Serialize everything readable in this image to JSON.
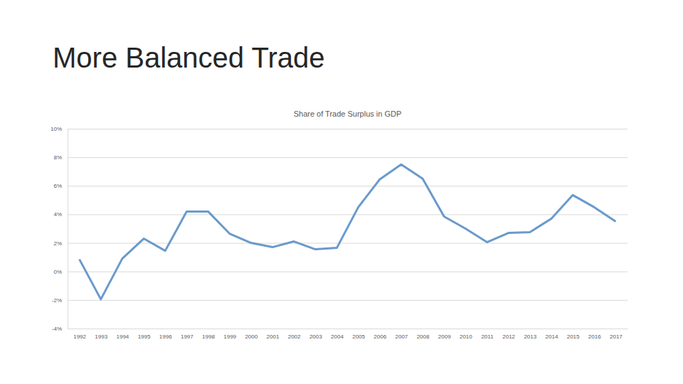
{
  "slide": {
    "title": "More Balanced Trade"
  },
  "chart_data": {
    "type": "line",
    "title": "Share of Trade Surplus in GDP",
    "categories": [
      "1992",
      "1993",
      "1994",
      "1995",
      "1996",
      "1997",
      "1998",
      "1999",
      "2000",
      "2001",
      "2002",
      "2003",
      "2004",
      "2005",
      "2006",
      "2007",
      "2008",
      "2009",
      "2010",
      "2011",
      "2012",
      "2013",
      "2014",
      "2015",
      "2016",
      "2017"
    ],
    "values": [
      0.85,
      -1.95,
      0.9,
      2.3,
      1.45,
      4.2,
      4.2,
      2.65,
      2.0,
      1.7,
      2.1,
      1.55,
      1.65,
      4.5,
      6.45,
      7.5,
      6.5,
      3.85,
      3.0,
      2.05,
      2.7,
      2.75,
      3.7,
      5.35,
      4.5,
      3.5
    ],
    "color": "#6a9acb",
    "ylim": [
      -4,
      10
    ],
    "yticks": [
      {
        "value": -4,
        "label": "-4%"
      },
      {
        "value": -2,
        "label": "-2%"
      },
      {
        "value": 0,
        "label": "0%"
      },
      {
        "value": 2,
        "label": "2%"
      },
      {
        "value": 4,
        "label": "4%"
      },
      {
        "value": 6,
        "label": "6%"
      },
      {
        "value": 8,
        "label": "8%"
      },
      {
        "value": 10,
        "label": "10%"
      }
    ],
    "grid": true
  }
}
